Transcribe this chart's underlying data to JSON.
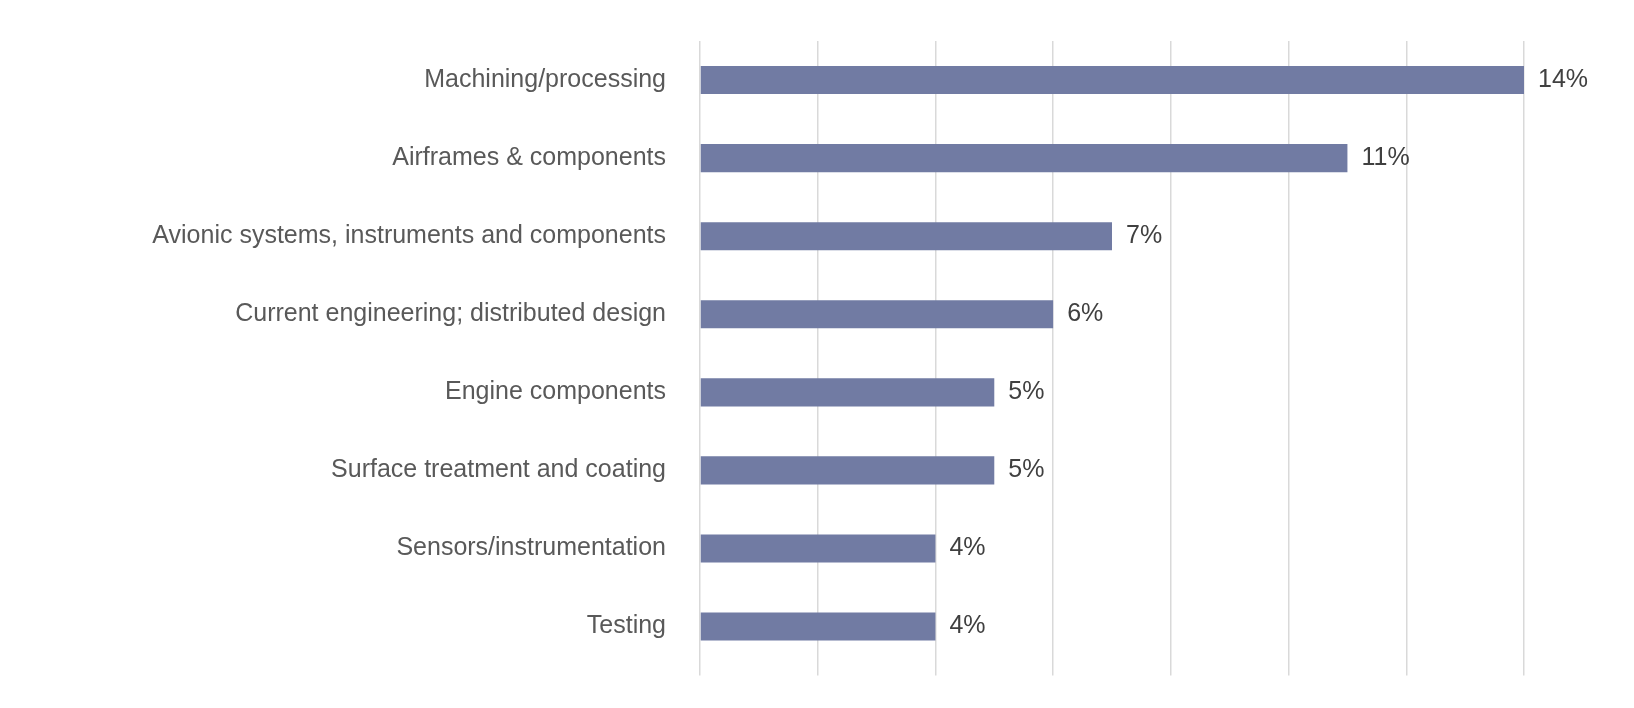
{
  "chart_data": {
    "type": "bar",
    "orientation": "horizontal",
    "categories": [
      "Machining/processing",
      "Airframes & components",
      "Avionic systems, instruments and components",
      "Current engineering; distributed design",
      "Engine components",
      "Surface treatment and coating",
      "Sensors/instrumentation",
      "Testing"
    ],
    "values": [
      14,
      11,
      7,
      6,
      5,
      5,
      4,
      4
    ],
    "value_labels": [
      "14%",
      "11%",
      "7%",
      "6%",
      "5%",
      "5%",
      "4%",
      "4%"
    ],
    "color": "#717ba3",
    "xlim": [
      0,
      14
    ],
    "xticks": [
      {
        "value": 0,
        "label": null
      },
      {
        "value": 2,
        "label": null
      },
      {
        "value": 4,
        "label": null
      },
      {
        "value": 6,
        "label": null
      },
      {
        "value": 8,
        "label": null
      },
      {
        "value": 10,
        "label": null
      },
      {
        "value": 12,
        "label": null
      },
      {
        "value": 14,
        "label": null
      }
    ],
    "grid": "x",
    "legend": false
  }
}
